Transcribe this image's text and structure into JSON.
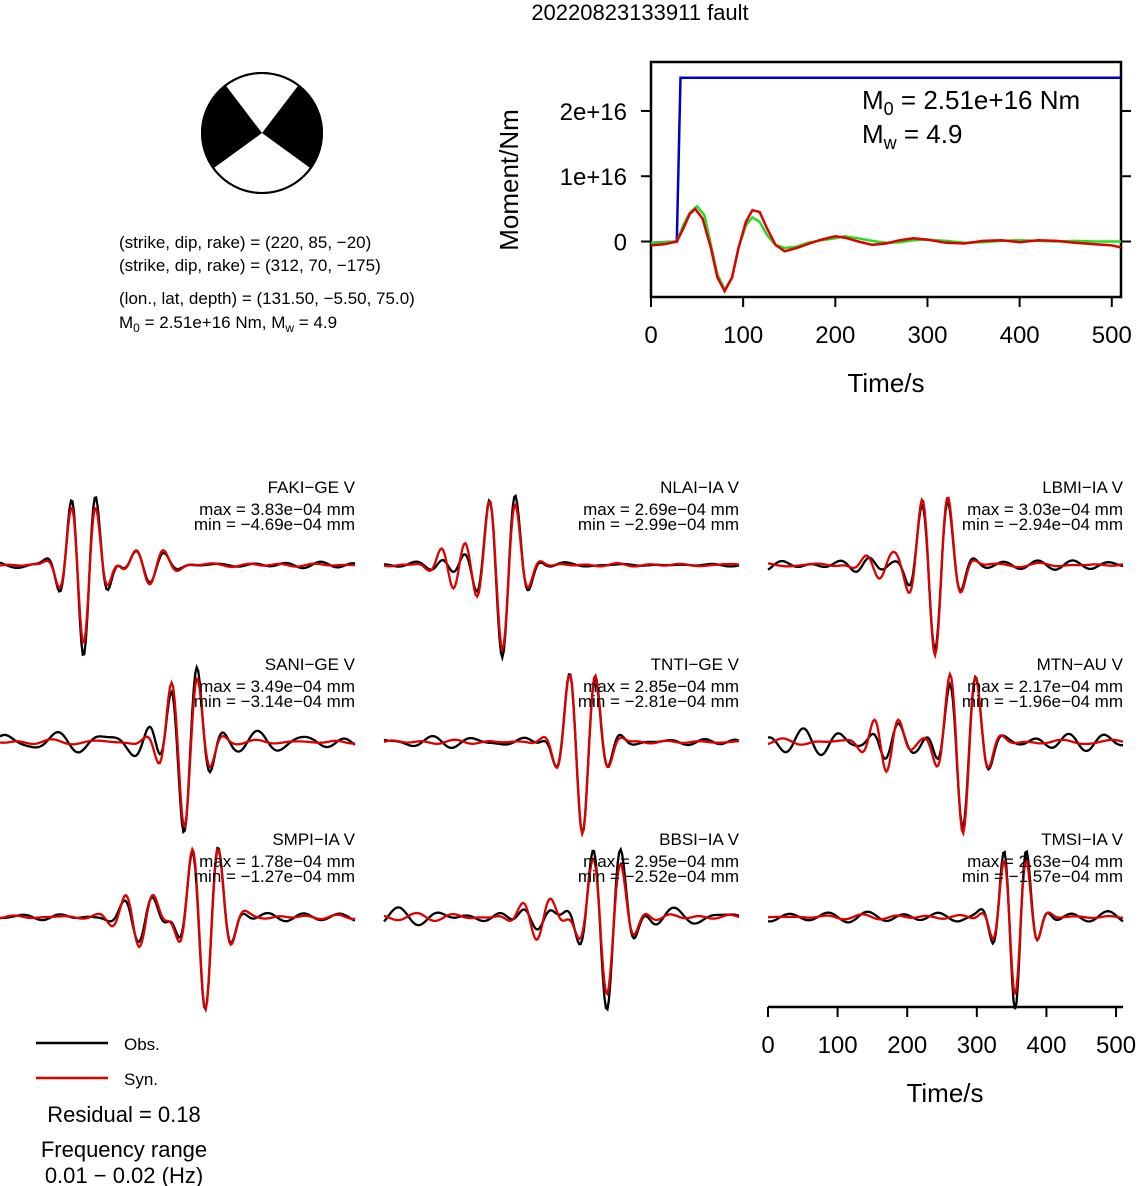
{
  "title": "20220823133911 fault",
  "focal": {
    "line1": "(strike, dip, rake) = (220, 85, −20)",
    "line2": "(strike, dip, rake) = (312, 70, −175)",
    "line3": "(lon., lat, depth) = (131.50, −5.50, 75.0)",
    "line4_m0": "M",
    "line4_m0_sub": "0",
    "line4_mid": " = 2.51e+16 Nm, M",
    "line4_mw_sub": "w",
    "line4_end": " = 4.9"
  },
  "colors": {
    "obs": "#000000",
    "syn": "#dd0000",
    "moment": "#0000cc",
    "rate_green": "#22dd22"
  },
  "legend": {
    "obs_label": "Obs.",
    "syn_label": "Syn.",
    "residual": "Residual = 0.18",
    "freq_title": "Frequency range",
    "freq_range": "0.01 − 0.02 (Hz)"
  },
  "chart_data": [
    {
      "type": "line",
      "title": "",
      "xlabel": "Time/s",
      "ylabel": "Moment/Nm",
      "xlim": [
        0,
        510
      ],
      "ylim": [
        -8500000000000000.0,
        2.75e+16
      ],
      "x_ticks": [
        0,
        100,
        200,
        300,
        400,
        500
      ],
      "y_ticks": [
        0,
        1e+16,
        2e+16
      ],
      "y_tick_labels": [
        "0",
        "1e+16",
        "2e+16"
      ],
      "annotation_m0": {
        "base": "M",
        "sub": "0",
        "rest": " = 2.51e+16 Nm"
      },
      "annotation_mw": {
        "base": "M",
        "sub": "w",
        "rest": " = 4.9"
      },
      "series": [
        {
          "color": "blue",
          "x": [
            0,
            28,
            32,
            510
          ],
          "y": [
            -200000000000000.0,
            0,
            2.51e+16,
            2.51e+16
          ]
        },
        {
          "color": "green",
          "x": [
            0,
            15,
            28,
            35,
            42,
            50,
            58,
            65,
            72,
            80,
            88,
            95,
            103,
            110,
            118,
            126,
            135,
            145,
            158,
            170,
            185,
            200,
            210,
            225,
            240,
            255,
            270,
            285,
            300,
            320,
            340,
            360,
            380,
            400,
            420,
            440,
            460,
            480,
            500,
            510
          ],
          "y": [
            -200000000000000.0,
            -100000000000000.0,
            0,
            2500000000000000.0,
            4400000000000000.0,
            5400000000000000.0,
            4000000000000000.0,
            -500000000000000.0,
            -5000000000000000.0,
            -7400000000000000.0,
            -5500000000000000.0,
            -1000000000000000.0,
            2500000000000000.0,
            3700000000000000.0,
            3000000000000000.0,
            1000000000000000.0,
            -500000000000000.0,
            -1000000000000000.0,
            -800000000000000.0,
            -200000000000000.0,
            200000000000000.0,
            500000000000000.0,
            800000000000000.0,
            500000000000000.0,
            100000000000000.0,
            -200000000000000.0,
            -100000000000000.0,
            200000000000000.0,
            300000000000000.0,
            100000000000000.0,
            -200000000000000.0,
            -100000000000000.0,
            100000000000000.0,
            200000000000000.0,
            100000000000000.0,
            0,
            100000000000000.0,
            0,
            0,
            0
          ]
        },
        {
          "color": "red",
          "x": [
            0,
            15,
            28,
            35,
            42,
            48,
            56,
            65,
            72,
            80,
            88,
            95,
            103,
            110,
            118,
            126,
            135,
            145,
            158,
            170,
            185,
            200,
            210,
            225,
            240,
            255,
            270,
            285,
            300,
            320,
            340,
            360,
            380,
            400,
            420,
            440,
            460,
            480,
            500,
            510
          ],
          "y": [
            -600000000000000.0,
            -400000000000000.0,
            0,
            2000000000000000.0,
            4200000000000000.0,
            5000000000000000.0,
            3500000000000000.0,
            -1000000000000000.0,
            -5500000000000000.0,
            -7600000000000000.0,
            -5500000000000000.0,
            -1000000000000000.0,
            3000000000000000.0,
            4800000000000000.0,
            4500000000000000.0,
            2000000000000000.0,
            -500000000000000.0,
            -1500000000000000.0,
            -1000000000000000.0,
            -400000000000000.0,
            300000000000000.0,
            800000000000000.0,
            600000000000000.0,
            0,
            -500000000000000.0,
            -300000000000000.0,
            200000000000000.0,
            500000000000000.0,
            300000000000000.0,
            -200000000000000.0,
            -300000000000000.0,
            100000000000000.0,
            200000000000000.0,
            -100000000000000.0,
            200000000000000.0,
            100000000000000.0,
            -200000000000000.0,
            -400000000000000.0,
            -600000000000000.0,
            -900000000000000.0
          ]
        }
      ]
    },
    {
      "type": "line",
      "title": "",
      "xlabel": "Time/s",
      "xlim": [
        0,
        510
      ],
      "ylim": [
        -1,
        1
      ],
      "x_ticks": [
        0,
        100,
        200,
        300,
        400,
        500
      ],
      "stations": [
        {
          "name": "FAKI−GE V",
          "max": "max = 3.83e−04 mm",
          "min": "min = −4.69e−04 mm",
          "events": [
            {
              "t": 120,
              "o": 1.4,
              "s": 1.2,
              "w": 14
            },
            {
              "t": 215,
              "o": 0.25,
              "s": 0.3,
              "w": 16
            }
          ],
          "noise_o": 0.05,
          "noise_s": 0.02,
          "phase": 1.1
        },
        {
          "name": "NLAI−IA V",
          "max": "max = 2.69e−04 mm",
          "min": "min = −2.99e−04 mm",
          "events": [
            {
              "t": 170,
              "o": 1.4,
              "s": 1.3,
              "w": 15
            },
            {
              "t": 100,
              "o": 0.12,
              "s": 0.35,
              "w": 14
            }
          ],
          "noise_o": 0.05,
          "noise_s": 0.02,
          "phase": 2.3
        },
        {
          "name": "LBMI−IA V",
          "max": "max = 3.03e−04 mm",
          "min": "min = −2.94e−04 mm",
          "events": [
            {
              "t": 240,
              "o": 1.3,
              "s": 1.4,
              "w": 15
            },
            {
              "t": 160,
              "o": 0.12,
              "s": 0.2,
              "w": 15
            }
          ],
          "noise_o": 0.07,
          "noise_s": 0.03,
          "phase": 0.7
        },
        {
          "name": "SANI−GE V",
          "max": "max = 3.49e−04 mm",
          "min": "min = −3.14e−04 mm",
          "events": [
            {
              "t": 265,
              "o": 1.4,
              "s": 1.3,
              "w": 15
            }
          ],
          "noise_o": 0.18,
          "noise_s": 0.05,
          "phase": 3.1
        },
        {
          "name": "TNTI−GE V",
          "max": "max = 2.85e−04 mm",
          "min": "min = −2.81e−04 mm",
          "events": [
            {
              "t": 285,
              "o": 1.4,
              "s": 1.4,
              "w": 15
            }
          ],
          "noise_o": 0.08,
          "noise_s": 0.03,
          "phase": 1.9
        },
        {
          "name": "MTN−AU V",
          "max": "max = 2.17e−04 mm",
          "min": "min = −1.96e−04 mm",
          "events": [
            {
              "t": 280,
              "o": 1.3,
              "s": 1.4,
              "w": 15
            },
            {
              "t": 170,
              "o": 0.2,
              "s": 0.45,
              "w": 14
            }
          ],
          "noise_o": 0.12,
          "noise_s": 0.04,
          "phase": 4.2
        },
        {
          "name": "SMPI−IA V",
          "max": "max = 1.78e−04 mm",
          "min": "min = −1.27e−04 mm",
          "events": [
            {
              "t": 295,
              "o": 1.4,
              "s": 1.4,
              "w": 15
            },
            {
              "t": 200,
              "o": 0.35,
              "s": 0.45,
              "w": 16
            }
          ],
          "noise_o": 0.08,
          "noise_s": 0.03,
          "phase": 2.7
        },
        {
          "name": "BBSI−IA V",
          "max": "max = 2.95e−04 mm",
          "min": "min = −2.52e−04 mm",
          "events": [
            {
              "t": 320,
              "o": 1.45,
              "s": 1.2,
              "w": 16
            },
            {
              "t": 220,
              "o": 0.2,
              "s": 0.35,
              "w": 16
            }
          ],
          "noise_o": 0.1,
          "noise_s": 0.04,
          "phase": 0.4
        },
        {
          "name": "TMSI−IA V",
          "max": "max = 2.63e−04 mm",
          "min": "min = −1.57e−04 mm",
          "events": [
            {
              "t": 355,
              "o": 1.4,
              "s": 1.2,
              "w": 13
            }
          ],
          "noise_o": 0.1,
          "noise_s": 0.03,
          "phase": 3.6
        }
      ]
    }
  ]
}
